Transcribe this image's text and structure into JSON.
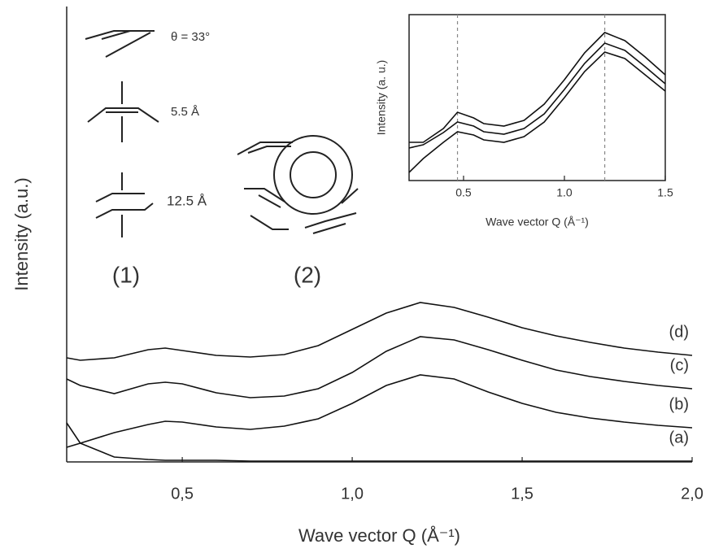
{
  "chart_data": [
    {
      "type": "line",
      "x_label": "Wave vector Q (Å⁻¹)",
      "y_label": "Intensity (a.u.)",
      "x": [
        0.16,
        0.2,
        0.3,
        0.4,
        0.45,
        0.5,
        0.6,
        0.7,
        0.8,
        0.9,
        1.0,
        1.1,
        1.2,
        1.3,
        1.4,
        1.5,
        1.6,
        1.7,
        1.8,
        1.9,
        2.0
      ],
      "series": [
        {
          "name": "(a)",
          "color": "#111111",
          "values": [
            4.8,
            2.3,
            0.6,
            0.3,
            0.2,
            0.2,
            0.2,
            0.1,
            0.1,
            0.1,
            0.1,
            0.1,
            0.1,
            0.1,
            0.1,
            0.1,
            0.1,
            0.1,
            0.1,
            0.1,
            0.1
          ]
        },
        {
          "name": "(b)",
          "color": "#111111",
          "values": [
            1.8,
            2.3,
            3.6,
            4.6,
            5.0,
            4.9,
            4.3,
            4.0,
            4.4,
            5.3,
            7.2,
            9.4,
            10.7,
            10.2,
            8.6,
            7.2,
            6.1,
            5.4,
            4.9,
            4.5,
            4.2
          ]
        },
        {
          "name": "(c)",
          "color": "#111111",
          "values": [
            10.2,
            9.4,
            8.4,
            9.6,
            9.8,
            9.6,
            8.5,
            7.9,
            8.1,
            9.0,
            11.0,
            13.6,
            15.4,
            15.0,
            13.8,
            12.5,
            11.3,
            10.5,
            9.9,
            9.4,
            9.0
          ]
        },
        {
          "name": "(d)",
          "color": "#111111",
          "values": [
            12.8,
            12.5,
            12.8,
            13.8,
            14.0,
            13.7,
            13.1,
            12.9,
            13.2,
            14.3,
            16.3,
            18.3,
            19.6,
            19.0,
            17.8,
            16.5,
            15.5,
            14.7,
            14.0,
            13.5,
            13.1
          ]
        }
      ],
      "xlim": [
        0.16,
        2.0
      ],
      "ylim": [
        0,
        56
      ],
      "xticks": [
        {
          "value": 0.5,
          "label": "0,5"
        },
        {
          "value": 1.0,
          "label": "1,0"
        },
        {
          "value": 1.5,
          "label": "1,5"
        },
        {
          "value": 2.0,
          "label": "2,0"
        }
      ],
      "annotations": [
        "θ = 33°",
        "5.5 Å",
        "12.5 Å",
        "(1)",
        "(2)"
      ]
    },
    {
      "type": "line",
      "x_label": "Wave vector Q (Å⁻¹)",
      "y_label": "Intensity (a. u.)",
      "x": [
        0.23,
        0.3,
        0.4,
        0.47,
        0.55,
        0.6,
        0.7,
        0.8,
        0.9,
        1.0,
        1.1,
        1.2,
        1.3,
        1.4,
        1.5
      ],
      "series": [
        {
          "color": "#111111",
          "values": [
            4.7,
            4.7,
            6.4,
            8.4,
            7.7,
            7.0,
            6.7,
            7.4,
            9.4,
            12.4,
            15.7,
            18.2,
            17.2,
            15.2,
            13.0
          ]
        },
        {
          "color": "#111111",
          "values": [
            4.0,
            4.4,
            5.9,
            7.2,
            6.7,
            6.0,
            5.7,
            6.4,
            8.2,
            11.2,
            14.4,
            16.9,
            16.0,
            14.0,
            11.9
          ]
        },
        {
          "color": "#111111",
          "values": [
            1.0,
            2.7,
            4.7,
            6.0,
            5.6,
            5.0,
            4.7,
            5.4,
            7.2,
            10.2,
            13.4,
            15.8,
            15.0,
            13.0,
            11.0
          ]
        }
      ],
      "xlim": [
        0.23,
        1.5
      ],
      "ylim": [
        0,
        20.4
      ],
      "xticks": [
        0.5,
        {
          "value": 1,
          "label": "1.0"
        },
        1.5
      ],
      "vlines": [
        0.47,
        1.2
      ]
    }
  ]
}
